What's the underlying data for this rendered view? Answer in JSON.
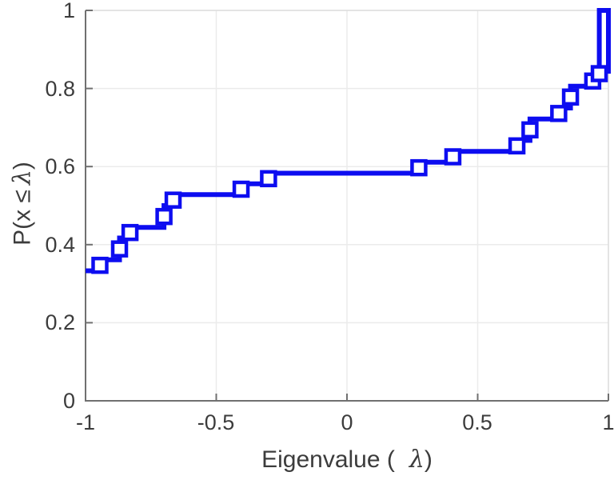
{
  "chart_data": {
    "type": "line",
    "subtype": "ecdf-stairs",
    "title": "",
    "xlabel": "Eigenvalue ( λ)",
    "ylabel": "P(x ≤ λ)",
    "xlabel_parts": {
      "prefix": "Eigenvalue (",
      "symbol": "λ",
      "suffix": ")"
    },
    "ylabel_parts": {
      "prefix": "P(x ≤",
      "symbol": "λ",
      "suffix": ")"
    },
    "xlim": [
      -1,
      1
    ],
    "ylim": [
      0,
      1
    ],
    "x_ticks": [
      -1,
      -0.5,
      0,
      0.5,
      1
    ],
    "x_tick_labels": [
      "-1",
      "-0.5",
      "0",
      "0.5",
      "1"
    ],
    "y_ticks": [
      0,
      0.2,
      0.4,
      0.6,
      0.8,
      1
    ],
    "y_tick_labels": [
      "0",
      "0.2",
      "0.4",
      "0.6",
      "0.8",
      "1"
    ],
    "grid": true,
    "box": true,
    "line_color": "#0d0df0",
    "marker": "open-square",
    "jumps": [
      {
        "lambda": -1.0,
        "cdf_after": 0.333
      },
      {
        "lambda": -0.945,
        "cdf_after": 0.361
      },
      {
        "lambda": -0.87,
        "cdf_after": 0.417
      },
      {
        "lambda": -0.83,
        "cdf_after": 0.444
      },
      {
        "lambda": -0.7,
        "cdf_after": 0.5
      },
      {
        "lambda": -0.665,
        "cdf_after": 0.528
      },
      {
        "lambda": -0.405,
        "cdf_after": 0.556
      },
      {
        "lambda": -0.3,
        "cdf_after": 0.583
      },
      {
        "lambda": 0.275,
        "cdf_after": 0.611
      },
      {
        "lambda": 0.405,
        "cdf_after": 0.639
      },
      {
        "lambda": 0.65,
        "cdf_after": 0.667
      },
      {
        "lambda": 0.7,
        "cdf_after": 0.722
      },
      {
        "lambda": 0.81,
        "cdf_after": 0.75
      },
      {
        "lambda": 0.855,
        "cdf_after": 0.806
      },
      {
        "lambda": 0.94,
        "cdf_after": 0.833
      },
      {
        "lambda": 0.965,
        "cdf_after": 1.0
      }
    ],
    "curve_vertices": [
      [
        -1.0,
        0.333
      ],
      [
        -0.945,
        0.333
      ],
      [
        -0.945,
        0.361
      ],
      [
        -0.87,
        0.361
      ],
      [
        -0.87,
        0.417
      ],
      [
        -0.83,
        0.417
      ],
      [
        -0.83,
        0.444
      ],
      [
        -0.7,
        0.444
      ],
      [
        -0.7,
        0.5
      ],
      [
        -0.665,
        0.5
      ],
      [
        -0.665,
        0.528
      ],
      [
        -0.405,
        0.528
      ],
      [
        -0.405,
        0.556
      ],
      [
        -0.3,
        0.556
      ],
      [
        -0.3,
        0.583
      ],
      [
        0.275,
        0.583
      ],
      [
        0.275,
        0.611
      ],
      [
        0.405,
        0.611
      ],
      [
        0.405,
        0.639
      ],
      [
        0.65,
        0.639
      ],
      [
        0.65,
        0.667
      ],
      [
        0.7,
        0.667
      ],
      [
        0.7,
        0.722
      ],
      [
        0.81,
        0.722
      ],
      [
        0.81,
        0.75
      ],
      [
        0.855,
        0.75
      ],
      [
        0.855,
        0.806
      ],
      [
        0.94,
        0.806
      ],
      [
        0.94,
        0.833
      ],
      [
        0.965,
        0.833
      ],
      [
        0.965,
        1.0
      ],
      [
        1.0,
        1.0
      ],
      [
        1.0,
        0.838
      ]
    ],
    "marker_points": [
      [
        -0.945,
        0.347
      ],
      [
        -0.87,
        0.389
      ],
      [
        -0.83,
        0.431
      ],
      [
        -0.7,
        0.472
      ],
      [
        -0.665,
        0.514
      ],
      [
        -0.405,
        0.542
      ],
      [
        -0.3,
        0.569
      ],
      [
        0.275,
        0.597
      ],
      [
        0.405,
        0.625
      ],
      [
        0.65,
        0.653
      ],
      [
        0.7,
        0.694
      ],
      [
        0.81,
        0.736
      ],
      [
        0.855,
        0.778
      ],
      [
        0.94,
        0.819
      ],
      [
        0.965,
        0.838
      ]
    ],
    "colors": {
      "line": "#0d0df0",
      "marker_fill": "#ffffff",
      "grid": "#ebebeb",
      "spine_dark": "#707070",
      "spine_light": "#dcdcdc",
      "text": "#3c3c3c",
      "background": "#ffffff"
    }
  }
}
